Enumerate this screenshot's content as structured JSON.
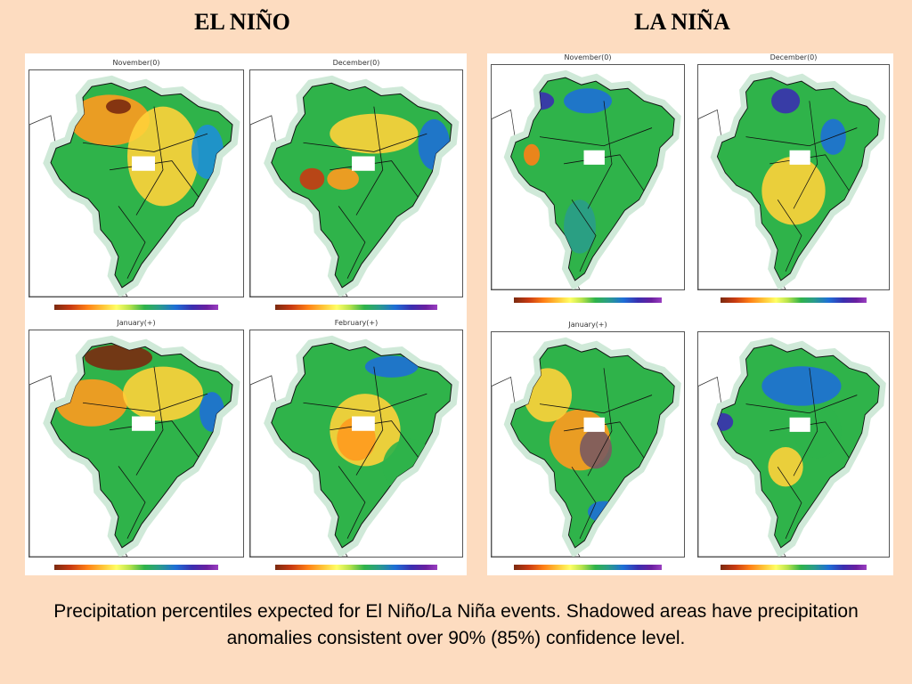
{
  "headings": {
    "el_nino": "EL NIÑO",
    "la_nina": "LA NIÑA"
  },
  "el_nino_maps": [
    {
      "title": "November(0)"
    },
    {
      "title": "December(0)"
    },
    {
      "title": "January(+)"
    },
    {
      "title": "February(+)"
    }
  ],
  "la_nina_maps": [
    {
      "title": "November(0)"
    },
    {
      "title": "December(0)"
    },
    {
      "title": "January(+)"
    },
    {
      "title": ""
    }
  ],
  "caption": "Precipitation percentiles expected for El Niño/La Niña events. Shadowed areas have precipitation anomalies consistent over 90% (85%) confidence level.",
  "colors": {
    "background": "#fddcc0",
    "dry": "#c83a12",
    "neutral": "#2fb34a",
    "wet": "#1e6fd6"
  }
}
